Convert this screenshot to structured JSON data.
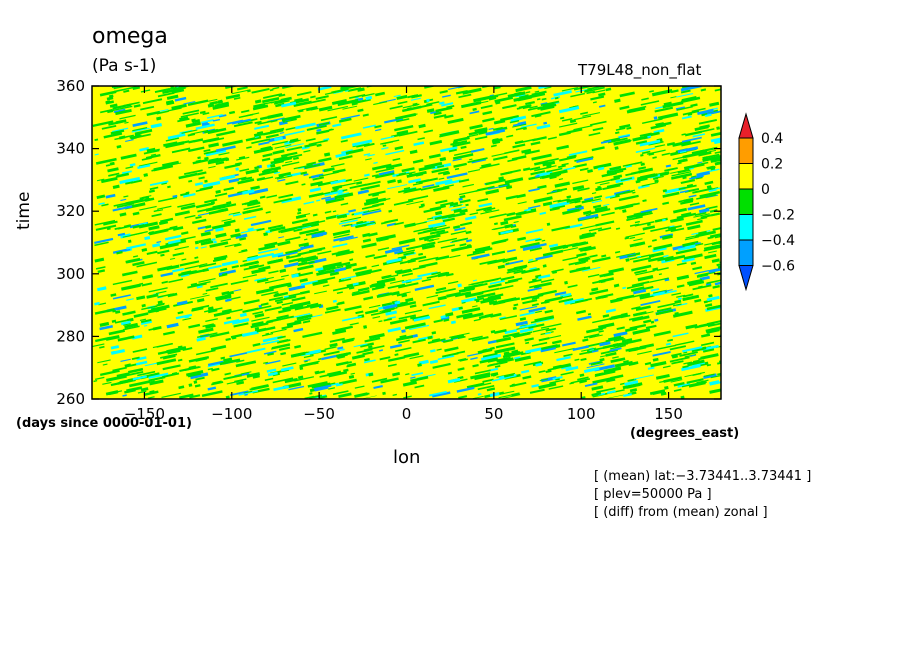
{
  "chart_data": {
    "type": "heatmap",
    "title": "omega",
    "units": "(Pa s-1)",
    "experiment": "T79L48_non_flat",
    "xlabel": "lon",
    "ylabel": "time",
    "x_units": "(degrees_east)",
    "y_units": "(days since 0000-01-01)",
    "xlim": [
      -180,
      180
    ],
    "ylim": [
      260,
      360
    ],
    "x_ticks": [
      -150,
      -100,
      -50,
      0,
      50,
      100,
      150
    ],
    "y_ticks": [
      260,
      280,
      300,
      320,
      340,
      360
    ],
    "colorbar": {
      "levels": [
        0.4,
        0.2,
        0,
        -0.2,
        -0.4,
        -0.6
      ],
      "level_labels": [
        "0.4",
        "0.2",
        "0",
        "−0.2",
        "−0.4",
        "−0.6"
      ],
      "colors": [
        "#e8202a",
        "#ff9d00",
        "#ffff00",
        "#00e000",
        "#00ffff",
        "#00a0ff",
        "#0050ff"
      ]
    },
    "notes": [
      "[ (mean) lat:−3.73441..3.73441 ]",
      "[ plev=50000 Pa ]",
      "[ (diff) from (mean) zonal ]"
    ]
  }
}
